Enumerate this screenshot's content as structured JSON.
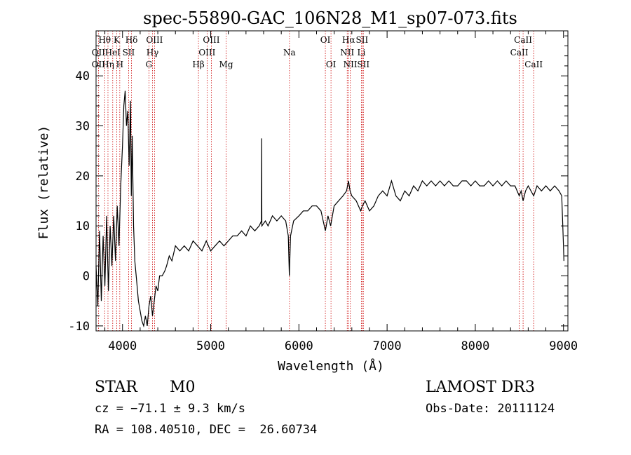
{
  "chart_data": {
    "type": "line",
    "title": "spec-55890-GAC_106N28_M1_sp07-073.fits",
    "xlabel": "Wavelength (Å)",
    "ylabel": "Flux (relative)",
    "xlim": [
      3700,
      9050
    ],
    "ylim": [
      -11,
      49
    ],
    "x_ticks": [
      4000,
      5000,
      6000,
      7000,
      8000,
      9000
    ],
    "y_ticks": [
      -10,
      0,
      10,
      20,
      30,
      40
    ],
    "grid": false,
    "line_color": "#000000",
    "marker_color": "#cc0000",
    "series": [
      {
        "points": [
          [
            3700,
            2
          ],
          [
            3720,
            -6
          ],
          [
            3740,
            9
          ],
          [
            3760,
            -5
          ],
          [
            3780,
            8
          ],
          [
            3800,
            -2
          ],
          [
            3820,
            12
          ],
          [
            3840,
            -3
          ],
          [
            3860,
            10
          ],
          [
            3880,
            2
          ],
          [
            3900,
            12
          ],
          [
            3920,
            3
          ],
          [
            3940,
            14
          ],
          [
            3960,
            6
          ],
          [
            3980,
            18
          ],
          [
            4000,
            26
          ],
          [
            4015,
            34
          ],
          [
            4030,
            37
          ],
          [
            4045,
            30
          ],
          [
            4060,
            33
          ],
          [
            4075,
            22
          ],
          [
            4090,
            35
          ],
          [
            4100,
            16
          ],
          [
            4110,
            28
          ],
          [
            4125,
            10
          ],
          [
            4140,
            3
          ],
          [
            4160,
            -1
          ],
          [
            4180,
            -5
          ],
          [
            4200,
            -7
          ],
          [
            4220,
            -9
          ],
          [
            4240,
            -10
          ],
          [
            4260,
            -8
          ],
          [
            4280,
            -10
          ],
          [
            4300,
            -6
          ],
          [
            4320,
            -4
          ],
          [
            4340,
            -8
          ],
          [
            4360,
            -5
          ],
          [
            4380,
            -2
          ],
          [
            4400,
            -3
          ],
          [
            4420,
            0
          ],
          [
            4450,
            0
          ],
          [
            4480,
            1
          ],
          [
            4500,
            2
          ],
          [
            4530,
            4
          ],
          [
            4560,
            3
          ],
          [
            4600,
            6
          ],
          [
            4650,
            5
          ],
          [
            4700,
            6
          ],
          [
            4750,
            5
          ],
          [
            4800,
            7
          ],
          [
            4850,
            6
          ],
          [
            4900,
            5
          ],
          [
            4950,
            7
          ],
          [
            5000,
            5
          ],
          [
            5050,
            6
          ],
          [
            5100,
            7
          ],
          [
            5150,
            6
          ],
          [
            5200,
            7
          ],
          [
            5250,
            8
          ],
          [
            5300,
            8
          ],
          [
            5350,
            9
          ],
          [
            5400,
            8
          ],
          [
            5450,
            10
          ],
          [
            5500,
            9
          ],
          [
            5550,
            10
          ],
          [
            5575,
            11
          ],
          [
            5577,
            27.5
          ],
          [
            5580,
            10
          ],
          [
            5620,
            11
          ],
          [
            5650,
            10
          ],
          [
            5700,
            12
          ],
          [
            5750,
            11
          ],
          [
            5800,
            12
          ],
          [
            5850,
            11
          ],
          [
            5880,
            8
          ],
          [
            5892,
            0
          ],
          [
            5905,
            8
          ],
          [
            5940,
            11
          ],
          [
            6000,
            12
          ],
          [
            6050,
            13
          ],
          [
            6100,
            13
          ],
          [
            6150,
            14
          ],
          [
            6200,
            14
          ],
          [
            6250,
            13
          ],
          [
            6300,
            9
          ],
          [
            6330,
            12
          ],
          [
            6360,
            10
          ],
          [
            6400,
            14
          ],
          [
            6450,
            15
          ],
          [
            6500,
            16
          ],
          [
            6540,
            17
          ],
          [
            6563,
            19
          ],
          [
            6580,
            17
          ],
          [
            6600,
            16
          ],
          [
            6650,
            15
          ],
          [
            6700,
            13
          ],
          [
            6720,
            14
          ],
          [
            6750,
            15
          ],
          [
            6800,
            13
          ],
          [
            6850,
            14
          ],
          [
            6900,
            16
          ],
          [
            6950,
            17
          ],
          [
            7000,
            16
          ],
          [
            7050,
            19
          ],
          [
            7100,
            16
          ],
          [
            7150,
            15
          ],
          [
            7200,
            17
          ],
          [
            7250,
            16
          ],
          [
            7300,
            18
          ],
          [
            7350,
            17
          ],
          [
            7400,
            19
          ],
          [
            7450,
            18
          ],
          [
            7500,
            19
          ],
          [
            7550,
            18
          ],
          [
            7600,
            19
          ],
          [
            7650,
            18
          ],
          [
            7700,
            19
          ],
          [
            7750,
            18
          ],
          [
            7800,
            18
          ],
          [
            7850,
            19
          ],
          [
            7900,
            19
          ],
          [
            7950,
            18
          ],
          [
            8000,
            19
          ],
          [
            8050,
            18
          ],
          [
            8100,
            18
          ],
          [
            8150,
            19
          ],
          [
            8200,
            18
          ],
          [
            8250,
            19
          ],
          [
            8300,
            18
          ],
          [
            8350,
            19
          ],
          [
            8400,
            18
          ],
          [
            8450,
            18
          ],
          [
            8498,
            16
          ],
          [
            8520,
            17
          ],
          [
            8542,
            15
          ],
          [
            8570,
            17
          ],
          [
            8600,
            18
          ],
          [
            8662,
            16
          ],
          [
            8700,
            18
          ],
          [
            8750,
            17
          ],
          [
            8800,
            18
          ],
          [
            8850,
            17
          ],
          [
            8900,
            18
          ],
          [
            8950,
            17
          ],
          [
            8980,
            16
          ],
          [
            9000,
            6
          ],
          [
            9005,
            3
          ]
        ]
      }
    ],
    "lines": [
      {
        "label": "Hθ",
        "wave": 3798,
        "row": 0
      },
      {
        "label": "OII",
        "wave": 3727,
        "row": 1
      },
      {
        "label": "OII",
        "wave": 3727,
        "row": 2
      },
      {
        "label": "HeI",
        "wave": 3889,
        "row": 1
      },
      {
        "label": "Hη",
        "wave": 3835,
        "row": 2
      },
      {
        "label": "K",
        "wave": 3934,
        "row": 0
      },
      {
        "label": "SII",
        "wave": 4069,
        "row": 1
      },
      {
        "label": "H",
        "wave": 3969,
        "row": 2
      },
      {
        "label": "Hδ",
        "wave": 4102,
        "row": 0
      },
      {
        "label": "OIII",
        "wave": 4363,
        "row": 0
      },
      {
        "label": "Hγ",
        "wave": 4340,
        "row": 1
      },
      {
        "label": "G",
        "wave": 4300,
        "row": 2
      },
      {
        "label": "Hβ",
        "wave": 4861,
        "row": 2
      },
      {
        "label": "OIII",
        "wave": 5007,
        "row": 0
      },
      {
        "label": "OIII",
        "wave": 4959,
        "row": 1
      },
      {
        "label": "Mg",
        "wave": 5175,
        "row": 2
      },
      {
        "label": "Na",
        "wave": 5893,
        "row": 1
      },
      {
        "label": "OI",
        "wave": 6300,
        "row": 0
      },
      {
        "label": "OI",
        "wave": 6364,
        "row": 2
      },
      {
        "label": "Hα",
        "wave": 6563,
        "row": 0
      },
      {
        "label": "NII",
        "wave": 6548,
        "row": 1
      },
      {
        "label": "NII",
        "wave": 6583,
        "row": 2
      },
      {
        "label": "SII",
        "wave": 6716,
        "row": 0
      },
      {
        "label": "Li",
        "wave": 6708,
        "row": 1
      },
      {
        "label": "SII",
        "wave": 6731,
        "row": 2
      },
      {
        "label": "CaII",
        "wave": 8542,
        "row": 0
      },
      {
        "label": "CaII",
        "wave": 8498,
        "row": 1
      },
      {
        "label": "CaII",
        "wave": 8662,
        "row": 2
      }
    ]
  },
  "info": {
    "object_class": "STAR",
    "subclass": "M0",
    "survey": "LAMOST DR3",
    "redshift": "cz = −71.1 ± 9.3 km/s",
    "obs_date": "Obs-Date: 20111124",
    "coords": "RA = 108.40510, DEC =  26.60734"
  }
}
